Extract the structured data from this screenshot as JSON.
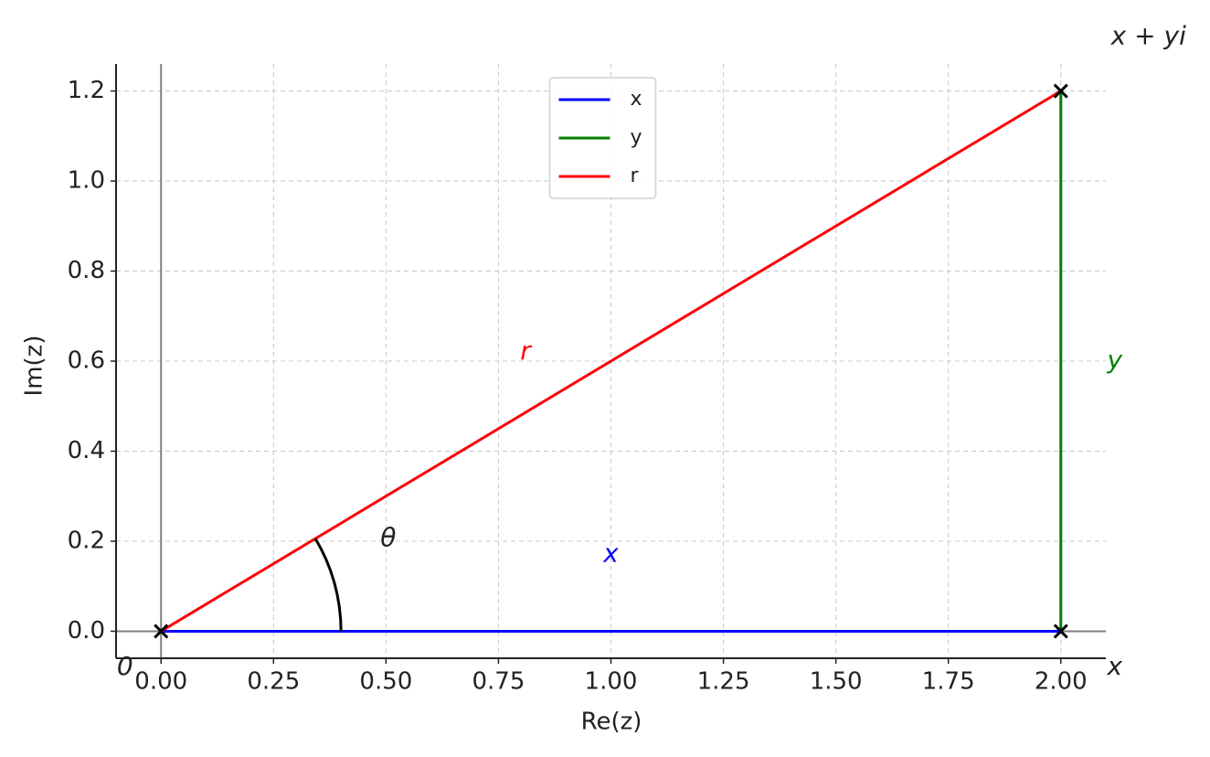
{
  "chart_data": {
    "type": "line",
    "xlabel": "Re(z)",
    "ylabel": "Im(z)",
    "xlim": [
      -0.1,
      2.1
    ],
    "ylim": [
      -0.06,
      1.26
    ],
    "xticks": [
      {
        "value": 0,
        "label": "0.00"
      },
      {
        "value": 0.25,
        "label": "0.25"
      },
      {
        "value": 0.5,
        "label": "0.50"
      },
      {
        "value": 0.75,
        "label": "0.75"
      },
      {
        "value": 1,
        "label": "1.00"
      },
      {
        "value": 1.25,
        "label": "1.25"
      },
      {
        "value": 1.5,
        "label": "1.50"
      },
      {
        "value": 1.75,
        "label": "1.75"
      },
      {
        "value": 2,
        "label": "2.00"
      }
    ],
    "yticks": [
      {
        "value": 0,
        "label": "0.0"
      },
      0.2,
      0.4,
      0.6,
      0.8,
      {
        "value": 1,
        "label": "1.0"
      },
      1.2
    ],
    "grid": true,
    "legend": "upper center",
    "series": [
      {
        "name": "x",
        "color": "#0000ff",
        "x": [
          0,
          2
        ],
        "values": [
          0,
          0
        ]
      },
      {
        "name": "y",
        "color": "#008000",
        "x": [
          2,
          2
        ],
        "values": [
          0,
          1.2
        ]
      },
      {
        "name": "r",
        "color": "#ff0000",
        "x": [
          0,
          2
        ],
        "values": [
          0,
          1.2
        ]
      }
    ],
    "markers": {
      "color": "#000000",
      "x": [
        0,
        2,
        2
      ],
      "values": [
        0,
        0,
        1.2
      ]
    },
    "angle_arc": {
      "radius": 0.4,
      "color": "#000000"
    },
    "annotations": [
      {
        "text": "x + yi",
        "x": 2.195,
        "y": 1.32,
        "color": "#222222"
      },
      {
        "text": "r",
        "x": 0.81,
        "y": 0.62,
        "color": "#ff0000"
      },
      {
        "text": "y",
        "x": 2.12,
        "y": 0.6,
        "color": "#008000"
      },
      {
        "text": "x",
        "x": 1.0,
        "y": 0.17,
        "color": "#0000ff"
      },
      {
        "text": "θ",
        "x": 0.505,
        "y": 0.205,
        "color": "#222222"
      },
      {
        "text": "0",
        "x": -0.08,
        "y": -0.08,
        "color": "#222222"
      },
      {
        "text": "x",
        "x": 2.12,
        "y": -0.08,
        "color": "#222222"
      }
    ]
  }
}
